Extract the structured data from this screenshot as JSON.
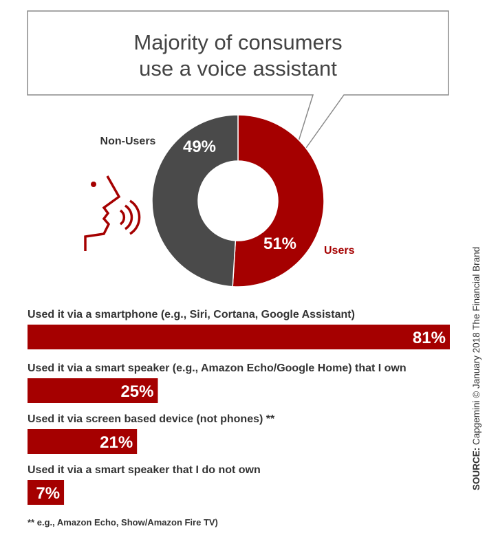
{
  "colors": {
    "accent": "#a50000",
    "dark": "#4a4a4a",
    "text": "#333333",
    "outline": "#8a8a8a"
  },
  "callout": {
    "line1": "Majority of consumers",
    "line2": "use a voice assistant"
  },
  "icons": [
    "speaking-head-icon"
  ],
  "chart_data": [
    {
      "type": "pie",
      "donut": true,
      "categories": [
        "Users",
        "Non-Users"
      ],
      "values": [
        51,
        49
      ],
      "value_labels": [
        "51%",
        "49%"
      ]
    },
    {
      "type": "bar",
      "orientation": "horizontal",
      "xlim": [
        0,
        100
      ],
      "categories": [
        "Used it via a smartphone (e.g., Siri, Cortana, Google Assistant)",
        "Used it via a smart speaker (e.g., Amazon Echo/Google Home) that I own",
        "Used it via screen based device (not phones) **",
        "Used it via a smart speaker that I do not own"
      ],
      "values": [
        81,
        25,
        21,
        7
      ],
      "value_labels": [
        "81%",
        "25%",
        "21%",
        "7%"
      ]
    }
  ],
  "footnote": "** e.g., Amazon Echo, Show/Amazon Fire TV)",
  "source": {
    "prefix": "SOURCE:",
    "text": " Capgemini © January 2018 The Financial Brand"
  }
}
